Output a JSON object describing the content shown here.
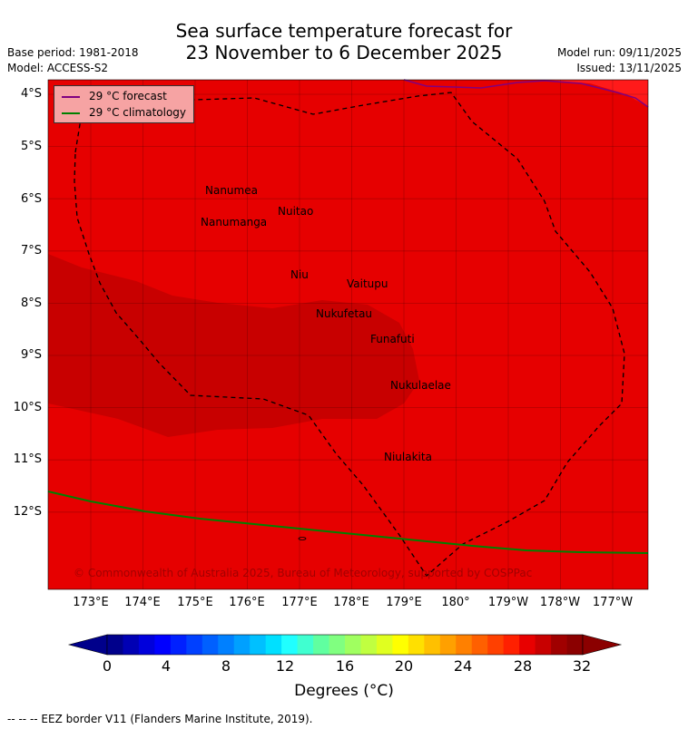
{
  "title_line1": "Sea surface temperature forecast for",
  "title_line2": "23 November to 6 December 2025",
  "meta_left": [
    "Base period: 1981-2018",
    "Model: ACCESS-S2"
  ],
  "meta_right": [
    "Model run: 09/11/2025",
    "Issued: 13/11/2025"
  ],
  "legend": [
    {
      "label": "29 °C  forecast",
      "color": "#800080"
    },
    {
      "label": "29 °C  climatology",
      "color": "#008000"
    }
  ],
  "lat_labels": [
    "4°S",
    "5°S",
    "6°S",
    "7°S",
    "8°S",
    "9°S",
    "10°S",
    "11°S",
    "12°S"
  ],
  "lon_labels": [
    "173°E",
    "174°E",
    "175°E",
    "176°E",
    "177°E",
    "178°E",
    "179°E",
    "180°",
    "179°W",
    "178°W",
    "177°W"
  ],
  "places": [
    "Nanumea",
    "Nuitao",
    "Nanumanga",
    "Niu",
    "Vaitupu",
    "Nukufetau",
    "Funafuti",
    "Nukulaelae",
    "Niulakita"
  ],
  "copyright": "© Commonwealth of Australia 2025, Bureau of Meteorology, supported by COSPPac",
  "colorbar": {
    "ticks": [
      "0",
      "4",
      "8",
      "12",
      "16",
      "20",
      "24",
      "28",
      "32"
    ],
    "title": "Degrees (°C)",
    "colors": [
      "#00008b",
      "#0000b4",
      "#0000dc",
      "#0000ff",
      "#0020ff",
      "#0040ff",
      "#0060ff",
      "#0080ff",
      "#00a0ff",
      "#00c0ff",
      "#00e0ff",
      "#20ffff",
      "#40ffd0",
      "#60ffa0",
      "#80ff80",
      "#a0ff60",
      "#c0ff40",
      "#e0ff20",
      "#ffff00",
      "#ffe000",
      "#ffc000",
      "#ffa000",
      "#ff8000",
      "#ff6000",
      "#ff4000",
      "#ff2000",
      "#e80000",
      "#c80000",
      "#a00000",
      "#8b0000"
    ]
  },
  "field_colors": {
    "main": "#e60000",
    "warm": "#c80000",
    "edge": "#ff1a1a"
  },
  "footer": "--  --  -- EEZ border V11 (Flanders Marine Institute, 2019)."
}
